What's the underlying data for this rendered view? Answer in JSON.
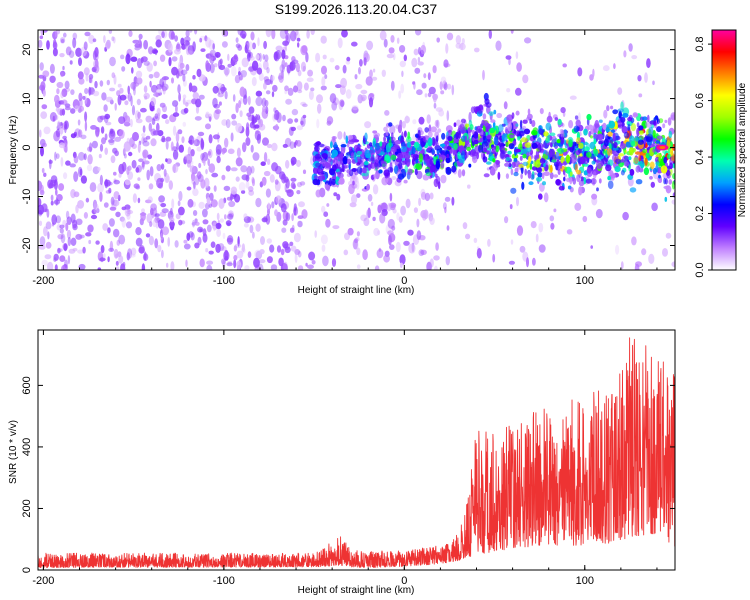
{
  "title": "S199.2026.113.20.04.C37",
  "chart_data": [
    {
      "type": "heatmap",
      "name": "spectrogram",
      "xlabel": "Height of straight line (km)",
      "ylabel": "Frequency (Hz)",
      "xlim": [
        -203,
        150
      ],
      "ylim": [
        -25,
        24
      ],
      "xticks": [
        -200,
        -100,
        0,
        100
      ],
      "yticks": [
        -20,
        -10,
        0,
        10,
        20
      ],
      "colorbar": {
        "label": "Normalized spectral amplitude",
        "range": [
          0.0,
          0.85
        ],
        "ticks": [
          0.0,
          0.2,
          0.4,
          0.6,
          0.8
        ],
        "colors": [
          "#ffffff",
          "#c080ff",
          "#6000ff",
          "#0000ff",
          "#00a0ff",
          "#00ffb0",
          "#00ff00",
          "#a0ff00",
          "#ffff00",
          "#ff8000",
          "#ff0000",
          "#ff00a0"
        ]
      },
      "ridge": {
        "x": [
          -45,
          -30,
          0,
          20,
          40,
          60,
          80,
          100,
          120,
          140,
          150
        ],
        "frequency": [
          -4,
          -2,
          -1,
          -2,
          2,
          0,
          -1,
          -2,
          1,
          0,
          -3
        ]
      }
    },
    {
      "type": "line",
      "name": "snr",
      "xlabel": "Height of straight line (km)",
      "ylabel": "SNR (10 * v/v)",
      "xlim": [
        -203,
        150
      ],
      "ylim": [
        0,
        780
      ],
      "xticks": [
        -200,
        -100,
        0,
        100
      ],
      "yticks": [
        0,
        200,
        400,
        600
      ],
      "color": "#ee3333",
      "envelope": {
        "x": [
          -203,
          -50,
          -35,
          -30,
          -20,
          0,
          20,
          30,
          35,
          40,
          60,
          80,
          100,
          120,
          125,
          140,
          150
        ],
        "min": [
          8,
          10,
          15,
          10,
          8,
          12,
          20,
          30,
          40,
          50,
          70,
          80,
          80,
          90,
          100,
          120,
          70
        ],
        "max": [
          55,
          55,
          110,
          75,
          60,
          65,
          80,
          120,
          230,
          460,
          480,
          540,
          560,
          640,
          780,
          700,
          650
        ]
      }
    }
  ]
}
